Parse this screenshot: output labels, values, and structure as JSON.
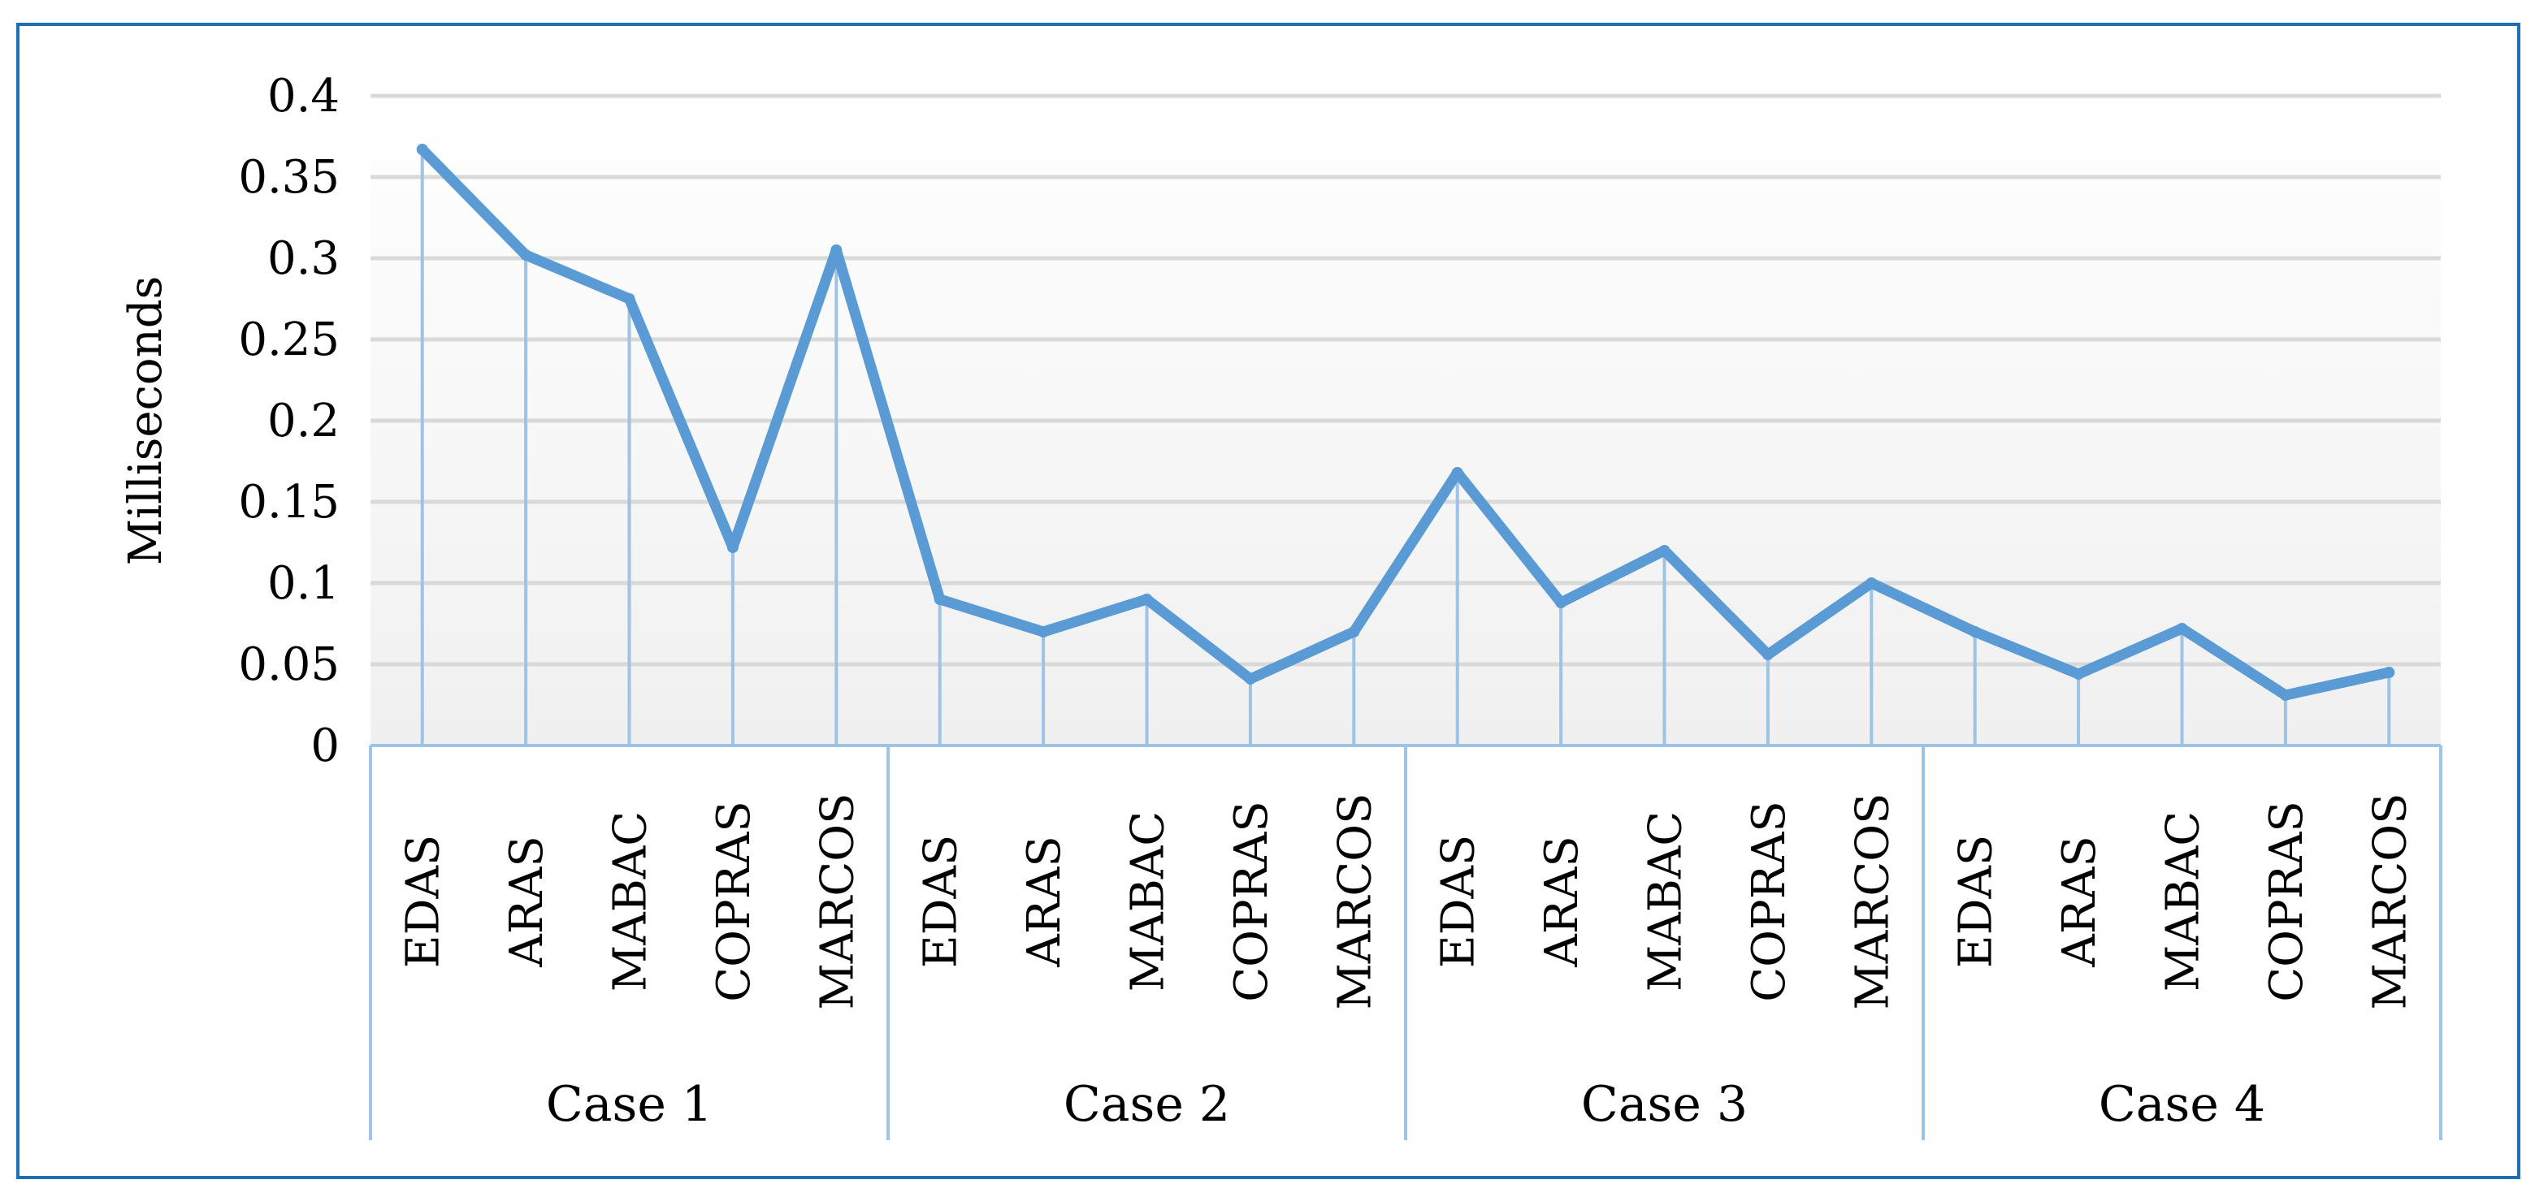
{
  "chart_data": {
    "type": "line",
    "title": "",
    "ylabel": "Milliseconds",
    "xlabel": "",
    "ylim": [
      0,
      0.4
    ],
    "yticks": [
      0,
      0.05,
      0.1,
      0.15,
      0.2,
      0.25,
      0.3,
      0.35,
      0.4
    ],
    "ytick_labels": [
      "0",
      "0.05",
      "0.1",
      "0.15",
      "0.2",
      "0.25",
      "0.3",
      "0.35",
      "0.4"
    ],
    "grid": "horizontal",
    "groups": [
      {
        "label": "Case 1",
        "categories": [
          "EDAS",
          "ARAS",
          "MABAC",
          "COPRAS",
          "MARCOS"
        ],
        "values": [
          0.367,
          0.302,
          0.275,
          0.122,
          0.305
        ]
      },
      {
        "label": "Case 2",
        "categories": [
          "EDAS",
          "ARAS",
          "MABAC",
          "COPRAS",
          "MARCOS"
        ],
        "values": [
          0.09,
          0.07,
          0.09,
          0.041,
          0.07
        ]
      },
      {
        "label": "Case 3",
        "categories": [
          "EDAS",
          "ARAS",
          "MABAC",
          "COPRAS",
          "MARCOS"
        ],
        "values": [
          0.168,
          0.088,
          0.12,
          0.056,
          0.1
        ]
      },
      {
        "label": "Case 4",
        "categories": [
          "EDAS",
          "ARAS",
          "MABAC",
          "COPRAS",
          "MARCOS"
        ],
        "values": [
          0.07,
          0.044,
          0.072,
          0.031,
          0.045
        ]
      }
    ],
    "colors": {
      "line": "#5b9bd5",
      "drop_lines": "#9dc3e6",
      "gridlines": "#d9d9d9",
      "axis_lines": "#9dc3e6",
      "frame_border": "#1f6fb5",
      "plot_gradient_top": "#ffffff",
      "plot_gradient_bottom": "#f0f0f0"
    }
  }
}
